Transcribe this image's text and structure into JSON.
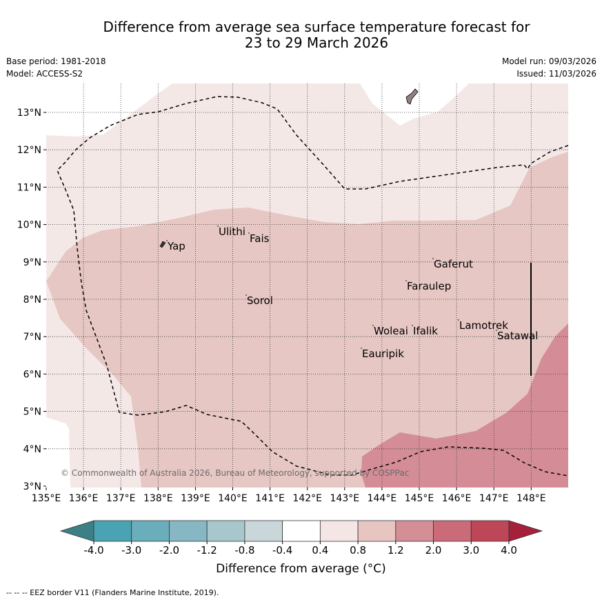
{
  "title_line1": "Difference from average sea surface temperature forecast for",
  "title_line2": "23 to 29 March 2026",
  "base_period": "Base period: 1981-2018",
  "model": "Model: ACCESS-S2",
  "model_run": "Model run: 09/03/2026",
  "issued": "Issued: 11/03/2026",
  "copyright": "© Commonwealth of Australia 2026, Bureau of Meteorology, supported by COSPPac",
  "colorbar_title": "Difference from average (°C)",
  "colorbar_ticks": [
    "-4.0",
    "-3.0",
    "-2.0",
    "-1.2",
    "-0.8",
    "-0.4",
    "0.4",
    "0.8",
    "1.2",
    "2.0",
    "3.0",
    "4.0"
  ],
  "colorbar_colors": [
    "#4aa3b2",
    "#6aaebb",
    "#86b7c3",
    "#a7c7cd",
    "#c9d6da",
    "#ffffff",
    "#f3e6e5",
    "#e7c6c2",
    "#d48e96",
    "#cb6a78",
    "#be4757"
  ],
  "colorbar_low_extend": "#3d7f86",
  "colorbar_high_extend": "#a5203a",
  "footer": "--  --  -- EEZ border V11 (Flanders Marine Institute, 2019).",
  "lon_labels": [
    "135°E",
    "136°E",
    "137°E",
    "138°E",
    "139°E",
    "140°E",
    "141°E",
    "142°E",
    "143°E",
    "144°E",
    "145°E",
    "146°E",
    "147°E",
    "148°E"
  ],
  "lat_labels": [
    "3°N",
    "4°N",
    "5°N",
    "6°N",
    "7°N",
    "8°N",
    "9°N",
    "10°N",
    "11°N",
    "12°N",
    "13°N"
  ],
  "places": [
    "Ulithi",
    "Fais",
    "Yap",
    "Gaferut",
    "Faraulep",
    "Sorol",
    "Woleai",
    "Ifalik",
    "Lamotrek",
    "Satawal",
    "Eauripik"
  ],
  "fill_colors": {
    "band_0_4_0_8": "#f4e8e7",
    "band_0_8_1_2": "#e6c7c3",
    "band_1_2_2_0": "#d48d96",
    "land": "#918280"
  }
}
